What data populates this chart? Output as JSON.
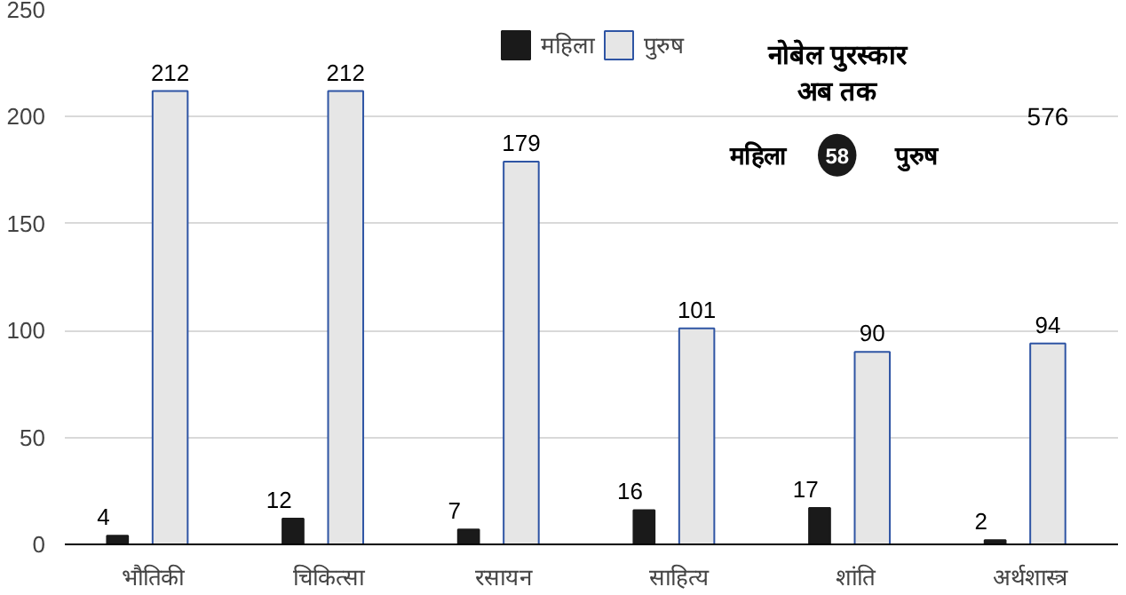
{
  "chart_data": {
    "type": "bar",
    "categories": [
      "भौतिकी",
      "चिकित्सा",
      "रसायन",
      "साहित्य",
      "शांति",
      "अर्थशास्त्र"
    ],
    "series": [
      {
        "name": "महिला",
        "color": "#1a1a1a",
        "values": [
          4,
          12,
          7,
          16,
          17,
          2
        ]
      },
      {
        "name": "पुरुष",
        "color": "#e6e6e6",
        "values": [
          212,
          212,
          179,
          101,
          90,
          94
        ]
      }
    ],
    "ylim": [
      0,
      250
    ],
    "yticks": [
      0,
      50,
      100,
      150,
      200,
      250
    ],
    "grid": "y",
    "legend": "top",
    "data_labels": true,
    "annotations": [
      "नोबेल पुरस्कार\nअब तक",
      "महिला",
      "58",
      "पुरुष",
      "576"
    ]
  }
}
